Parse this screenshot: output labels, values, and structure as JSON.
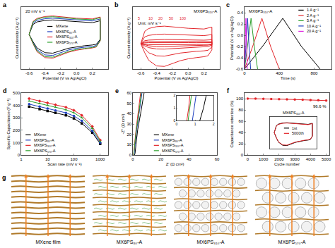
{
  "chart_data": [
    {
      "panel": "a",
      "type": "line",
      "title": "20 mV s⁻¹",
      "x_label": "Potential (V vs Ag/AgCl)",
      "y_label": "Current density (A g⁻¹)",
      "legend": "center",
      "x": [
        -0.6,
        -0.55,
        -0.5,
        -0.4,
        -0.3,
        -0.2,
        -0.1,
        0,
        0.1,
        0.2,
        0.3,
        0.3,
        0.25,
        0.2,
        0.1,
        0,
        -0.1,
        -0.2,
        -0.3,
        -0.4,
        -0.5,
        -0.55,
        -0.6
      ],
      "series": [
        {
          "name": "MXene",
          "color": "#000000",
          "values": [
            0,
            4.0,
            5.0,
            5.6,
            5.8,
            5.6,
            5.3,
            5.0,
            4.8,
            4.7,
            5.5,
            -2,
            -4.0,
            -4.3,
            -4.6,
            -5.0,
            -5.6,
            -6.6,
            -7.6,
            -7.4,
            -5.5,
            -3.0,
            0
          ]
        },
        {
          "name": "MX6PS₈₀-A",
          "color": "#1f3fbf",
          "values": [
            0,
            4.6,
            5.6,
            6.3,
            6.5,
            6.3,
            6.0,
            5.7,
            5.5,
            5.4,
            6.2,
            -2.3,
            -4.5,
            -4.9,
            -5.2,
            -5.6,
            -6.3,
            -7.4,
            -8.5,
            -8.3,
            -6.2,
            -3.4,
            0
          ]
        },
        {
          "name": "MX6PS₃₁₀-A",
          "color": "#e3262b",
          "values": [
            0,
            5.2,
            6.4,
            7.2,
            7.4,
            7.2,
            6.8,
            6.5,
            6.3,
            6.2,
            7.0,
            -2.6,
            -5.1,
            -5.5,
            -5.9,
            -6.4,
            -7.2,
            -8.4,
            -9.6,
            -9.4,
            -7.0,
            -3.8,
            0
          ]
        },
        {
          "name": "MX6PS₅₇₀-A",
          "color": "#2ca02c",
          "values": [
            0,
            5.0,
            6.1,
            6.9,
            7.1,
            6.9,
            6.5,
            6.2,
            6.0,
            5.9,
            6.7,
            -2.5,
            -4.9,
            -5.3,
            -5.7,
            -6.1,
            -6.9,
            -8.0,
            -9.2,
            -9.0,
            -6.7,
            -3.6,
            0
          ]
        }
      ],
      "xlim": [
        -0.7,
        0.4
      ],
      "xticks": [
        -0.6,
        -0.4,
        -0.2,
        {
          "value": 0,
          "label": "0.0"
        },
        0.2
      ],
      "ylim": [
        -14,
        11
      ],
      "tick_labels": "x"
    },
    {
      "panel": "b",
      "type": "line",
      "title": "MX6PS₃₁₀-A",
      "annotation": "Unit: mV s⁻¹",
      "x_label": "Potential (V vs Ag/AgCl)",
      "y_label": "Current density (A g⁻¹)",
      "x": [
        -0.6,
        -0.55,
        -0.5,
        -0.4,
        -0.3,
        -0.2,
        -0.1,
        0,
        0.1,
        0.2,
        0.3,
        0.3,
        0.25,
        0.2,
        0.1,
        0,
        -0.1,
        -0.2,
        -0.3,
        -0.4,
        -0.5,
        -0.55,
        -0.6
      ],
      "series": [
        {
          "name": "5",
          "color": "#e3262b",
          "values": [
            0,
            1.4,
            1.7,
            1.9,
            2.0,
            1.9,
            1.8,
            1.8,
            1.7,
            1.7,
            1.9,
            -0.7,
            -1.4,
            -1.5,
            -1.6,
            -1.7,
            -1.9,
            -2.3,
            -2.6,
            -2.5,
            -1.9,
            -1.0,
            0
          ]
        },
        {
          "name": "10",
          "color": "#e3262b",
          "values": [
            0,
            2.8,
            3.4,
            3.8,
            3.9,
            3.8,
            3.6,
            3.4,
            3.3,
            3.3,
            3.7,
            -1.4,
            -2.7,
            -2.9,
            -3.1,
            -3.4,
            -3.8,
            -4.5,
            -5.1,
            -5.0,
            -3.7,
            -2.0,
            0
          ]
        },
        {
          "name": "20",
          "color": "#e3262b",
          "values": [
            0,
            5.2,
            6.4,
            7.2,
            7.4,
            7.2,
            6.8,
            6.5,
            6.3,
            6.2,
            7.0,
            -2.6,
            -5.1,
            -5.5,
            -5.9,
            -6.4,
            -7.2,
            -8.4,
            -9.6,
            -9.4,
            -7.0,
            -3.8,
            0
          ]
        },
        {
          "name": "50",
          "color": "#e3262b",
          "values": [
            0,
            12.0,
            14.7,
            16.6,
            17.0,
            16.6,
            15.6,
            15.0,
            14.5,
            14.3,
            16.1,
            -6.0,
            -11.7,
            -12.7,
            -13.6,
            -14.7,
            -16.6,
            -19.3,
            -22.1,
            -21.6,
            -16.1,
            -8.7,
            0
          ]
        },
        {
          "name": "100",
          "color": "#e3262b",
          "values": [
            0,
            21.8,
            26.9,
            30.2,
            31.1,
            30.2,
            28.6,
            27.3,
            26.5,
            26.0,
            29.4,
            -10.9,
            -21.4,
            -23.1,
            -24.8,
            -26.9,
            -30.2,
            -35.3,
            -40.3,
            -39.5,
            -29.4,
            -16.0,
            0
          ]
        }
      ],
      "xlim": [
        -0.7,
        0.4
      ],
      "xticks": [
        -0.6,
        -0.4,
        -0.2,
        {
          "value": 0,
          "label": "0.0"
        },
        0.2
      ],
      "ylim": [
        -45,
        65
      ],
      "tick_labels": "x"
    },
    {
      "panel": "c",
      "type": "line",
      "title": "MX6PS₃₁₀-A",
      "x_label": "Time (s)",
      "y_label": "Potential (V vs Ag/AgCl)",
      "legend": "upper right",
      "series": [
        {
          "name": "1 A g⁻¹",
          "color": "#000000",
          "x": [
            0,
            220,
            440,
            655,
            870
          ],
          "values": [
            -0.6,
            -0.17,
            0.3,
            -0.2,
            -0.6
          ]
        },
        {
          "name": "2 A g⁻¹",
          "color": "#e3262b",
          "x": [
            0,
            100,
            200,
            300,
            400
          ],
          "values": [
            -0.6,
            -0.17,
            0.3,
            -0.2,
            -0.6
          ]
        },
        {
          "name": "5 A g⁻¹",
          "color": "#2ca02c",
          "x": [
            0,
            38,
            75,
            113,
            150
          ],
          "values": [
            -0.6,
            -0.17,
            0.3,
            -0.2,
            -0.6
          ]
        },
        {
          "name": "10 A g⁻¹",
          "color": "#1f3fbf",
          "x": [
            0,
            17,
            35,
            52,
            70
          ],
          "values": [
            -0.6,
            -0.17,
            0.3,
            -0.2,
            -0.6
          ]
        },
        {
          "name": "20 A g⁻¹",
          "color": "#e020e0",
          "x": [
            0,
            8,
            16,
            24,
            32
          ],
          "values": [
            -0.6,
            -0.17,
            0.3,
            -0.2,
            -0.6
          ]
        }
      ],
      "xlim": [
        0,
        1000
      ],
      "xticks": [
        0,
        400,
        800
      ],
      "ylim": [
        -0.6,
        0.5
      ],
      "yticks": [
        -0.6,
        -0.4,
        -0.2,
        {
          "value": 0,
          "label": "0.0"
        },
        0.2,
        0.4
      ]
    },
    {
      "panel": "d",
      "type": "line",
      "log": "x",
      "x_label": "Scan rate (mV s⁻¹)",
      "y_label": "Specific Capacitance (F g⁻¹)",
      "legend": "lower left",
      "x": [
        2,
        5,
        10,
        20,
        50,
        100,
        200,
        500,
        1000
      ],
      "series": [
        {
          "name": "MXene",
          "color": "#000000",
          "marker": "square",
          "values": [
            390,
            370,
            355,
            340,
            320,
            295,
            255,
            180,
            90
          ]
        },
        {
          "name": "MX6PS₈₀-A",
          "color": "#1f3fbf",
          "marker": "circle",
          "values": [
            410,
            390,
            375,
            360,
            340,
            315,
            275,
            195,
            100
          ]
        },
        {
          "name": "MX6PS₃₁₀-A",
          "color": "#e3262b",
          "marker": "diamond",
          "values": [
            455,
            435,
            420,
            405,
            385,
            360,
            320,
            230,
            120
          ]
        },
        {
          "name": "MX6PS₅₇₀-A",
          "color": "#2ca02c",
          "marker": "triangle-up",
          "values": [
            435,
            415,
            400,
            385,
            365,
            340,
            300,
            215,
            110
          ]
        }
      ],
      "xlim": [
        1,
        2000
      ],
      "xticks": [
        1,
        10,
        100,
        1000
      ],
      "ylim": [
        0,
        500
      ],
      "yticks": [
        0,
        100,
        200,
        300,
        400,
        500
      ]
    },
    {
      "panel": "e",
      "type": "line",
      "x_label": "Z' (Ω cm²)",
      "y_label": "-Z'' (Ω cm²)",
      "legend": "lower center",
      "series": [
        {
          "name": "MXene",
          "color": "#000000",
          "x": [
            1.25,
            1.35,
            1.45,
            1.6,
            2.2,
            3.5,
            5.5,
            8.0
          ],
          "values": [
            0,
            0.5,
            1,
            2,
            10,
            25,
            40,
            60
          ]
        },
        {
          "name": "MX6PS₈₀-A",
          "color": "#1f3fbf",
          "x": [
            0.85,
            0.9,
            0.95,
            1.05,
            1.6,
            2.8,
            4.5,
            6.5
          ],
          "values": [
            0,
            0.5,
            1,
            2,
            10,
            25,
            40,
            60
          ]
        },
        {
          "name": "MX6PS₃₁₀-A",
          "color": "#e3262b",
          "x": [
            0.55,
            0.6,
            0.65,
            0.72,
            1.2,
            2.3,
            3.8,
            5.5
          ],
          "values": [
            0,
            0.5,
            1,
            2,
            10,
            25,
            40,
            60
          ]
        },
        {
          "name": "MX6PS₅₇₀-A",
          "color": "#2ca02c",
          "x": [
            0.62,
            0.67,
            0.72,
            0.8,
            1.3,
            2.5,
            4.2,
            6.0
          ],
          "values": [
            0,
            0.5,
            1,
            2,
            10,
            25,
            40,
            60
          ]
        }
      ],
      "xlim": [
        0,
        60
      ],
      "xticks": [
        0,
        20,
        40,
        60
      ],
      "ylim": [
        0,
        60
      ],
      "yticks": [
        0,
        10,
        20,
        30,
        40,
        50,
        60
      ],
      "inset": {
        "xlim": [
          0,
          2
        ],
        "xticks": [
          0,
          1,
          2
        ],
        "ylim": [
          0,
          2
        ],
        "yticks": [
          0,
          1,
          2
        ]
      }
    },
    {
      "panel": "f",
      "type": "line",
      "annotation": "96.6 %",
      "x_label": "Cycle number",
      "y_label": "Capacitance retention (%)",
      "x": [
        0,
        500,
        1000,
        1500,
        2000,
        2500,
        3000,
        3500,
        4000,
        4500,
        5000
      ],
      "series": [
        {
          "color": "#e3262b",
          "marker": "circle",
          "values": [
            100,
            99.9,
            99.7,
            99.5,
            99.2,
            98.8,
            98.4,
            98.0,
            97.6,
            97.1,
            96.6
          ]
        }
      ],
      "xlim": [
        -200,
        5200
      ],
      "xticks": [
        0,
        1000,
        2000,
        3000,
        4000,
        5000
      ],
      "ylim": [
        0,
        110
      ],
      "yticks": [
        0,
        20,
        40,
        60,
        80,
        100
      ],
      "inset": {
        "type": "line",
        "title": "MX6PS₃₁₀-A",
        "legend": "center",
        "x": [
          -0.6,
          -0.55,
          -0.5,
          -0.4,
          -0.3,
          -0.2,
          -0.1,
          0,
          0.1,
          0.2,
          0.3,
          0.3,
          0.25,
          0.2,
          0.1,
          0,
          -0.1,
          -0.2,
          -0.3,
          -0.4,
          -0.5,
          -0.55,
          -0.6
        ],
        "series": [
          {
            "name": "1st",
            "color": "#000000",
            "values": [
              0,
              5.2,
              6.4,
              7.2,
              7.4,
              7.2,
              6.8,
              6.5,
              6.3,
              6.2,
              7.0,
              -2.6,
              -5.1,
              -5.5,
              -5.9,
              -6.4,
              -7.2,
              -8.4,
              -9.6,
              -9.4,
              -7.0,
              -3.8,
              0
            ]
          },
          {
            "name": "5000th",
            "color": "#e3262b",
            "values": [
              0,
              5.0,
              6.2,
              7.0,
              7.2,
              7.0,
              6.6,
              6.3,
              6.1,
              6.0,
              6.8,
              -2.5,
              -4.9,
              -5.3,
              -5.7,
              -6.2,
              -7.0,
              -8.1,
              -9.3,
              -9.1,
              -6.8,
              -3.7,
              0
            ]
          }
        ],
        "xlim": [
          -0.7,
          0.4
        ],
        "ylim": [
          -12,
          12
        ],
        "tick_labels": false
      }
    }
  ],
  "schematic": {
    "panel": "g",
    "captions": [
      "MXene film",
      "MX6PS₈₀-A",
      "MX6PS₃₁₀-A",
      "MX6PS₅₇₀-A"
    ]
  }
}
